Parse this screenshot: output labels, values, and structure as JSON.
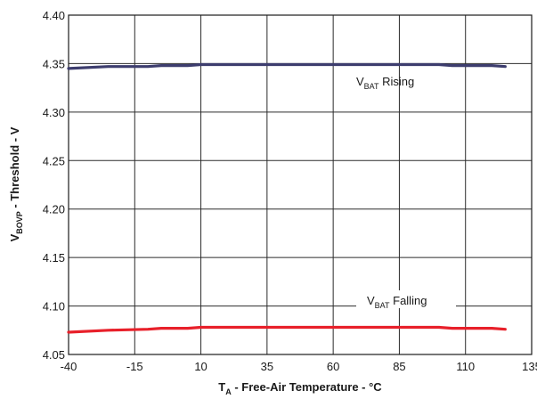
{
  "chart_data": {
    "type": "line",
    "xlabel": {
      "main": "T",
      "sub": "A",
      "rest": " - Free-Air Temperature - °C"
    },
    "ylabel": {
      "main": "V",
      "sub": "BOVP",
      "rest": " - Threshold - V"
    },
    "xlim": [
      -40,
      135
    ],
    "ylim": [
      4.05,
      4.4
    ],
    "x_ticks": [
      -40,
      -15,
      10,
      35,
      60,
      85,
      110,
      135
    ],
    "y_ticks": [
      4.05,
      4.1,
      4.15,
      4.2,
      4.25,
      4.3,
      4.35,
      4.4
    ],
    "x_tick_labels": [
      "-40",
      "-15",
      "10",
      "35",
      "60",
      "85",
      "110",
      "135"
    ],
    "y_tick_labels": [
      "4.05",
      "4.10",
      "4.15",
      "4.20",
      "4.25",
      "4.30",
      "4.35",
      "4.40"
    ],
    "grid": true,
    "series": [
      {
        "name": {
          "main": "V",
          "sub": "BAT",
          "rest": " Rising"
        },
        "color": "#3d3d6e",
        "x": [
          -40,
          -25,
          -10,
          -5,
          5,
          10,
          25,
          45,
          65,
          85,
          100,
          105,
          120,
          125
        ],
        "y": [
          4.345,
          4.347,
          4.347,
          4.348,
          4.348,
          4.349,
          4.349,
          4.349,
          4.349,
          4.349,
          4.349,
          4.348,
          4.348,
          4.347
        ]
      },
      {
        "name": {
          "main": "V",
          "sub": "BAT",
          "rest": " Falling"
        },
        "color": "#e8202a",
        "x": [
          -40,
          -25,
          -10,
          -5,
          5,
          10,
          25,
          45,
          65,
          85,
          100,
          105,
          120,
          125
        ],
        "y": [
          4.073,
          4.075,
          4.076,
          4.077,
          4.077,
          4.078,
          4.078,
          4.078,
          4.078,
          4.078,
          4.078,
          4.077,
          4.077,
          4.076
        ]
      }
    ]
  }
}
